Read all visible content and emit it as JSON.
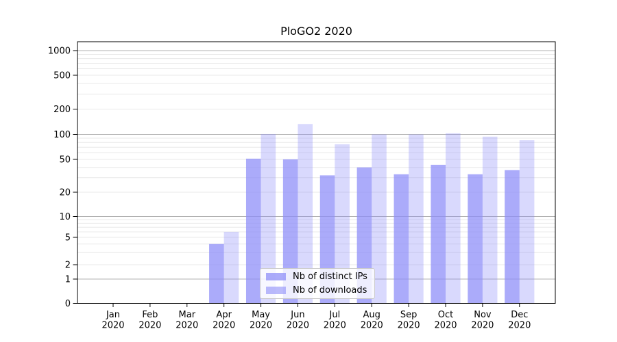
{
  "chart_data": {
    "type": "bar",
    "title": "PloGO2 2020",
    "x_months": [
      "Jan",
      "Feb",
      "Mar",
      "Apr",
      "May",
      "Jun",
      "Jul",
      "Aug",
      "Sep",
      "Oct",
      "Nov",
      "Dec"
    ],
    "x_year": "2020",
    "series": [
      {
        "name": "Nb of distinct IPs",
        "fill": "#8d8df8",
        "opacity": 0.74,
        "values": [
          0,
          0,
          0,
          4,
          51,
          50,
          32,
          40,
          33,
          43,
          33,
          37
        ]
      },
      {
        "name": "Nb of downloads",
        "fill": "#8d8df8",
        "opacity": 0.33,
        "values": [
          0,
          0,
          0,
          6,
          101,
          133,
          76,
          100,
          100,
          103,
          94,
          85
        ]
      }
    ],
    "y_ticks": [
      0,
      1,
      2,
      5,
      10,
      20,
      50,
      100,
      200,
      500,
      1000
    ],
    "y_scale": "symlog",
    "ylim": [
      0,
      1300
    ],
    "grid": "horizontal, major and minor",
    "legend_position": "lower center",
    "colors": {
      "major_grid": "#b0b0b0",
      "minor_grid": "#e8e8e8",
      "axis_frame": "#000000",
      "text": "#000000"
    }
  }
}
